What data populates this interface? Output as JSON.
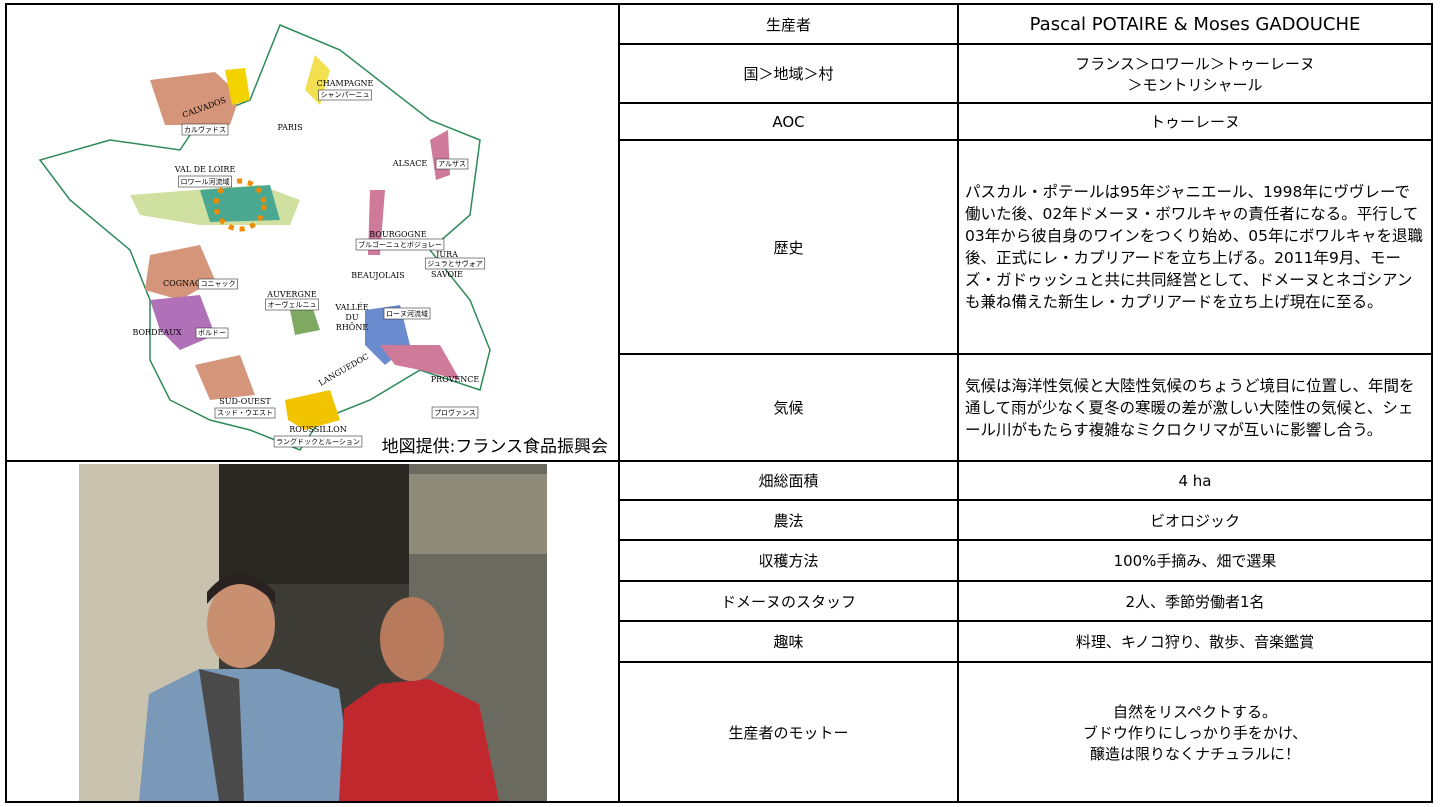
{
  "map": {
    "caption": "地図提供:フランス食品振興会",
    "labels": [
      "CHAMPAGNE",
      "シャンパーニュ",
      "CALVADOS",
      "カルヴァドス",
      "PARIS",
      "ALSACE",
      "アルザス",
      "VAL DE LOIRE",
      "ロワール河流域",
      "BOURGOGNE",
      "ブルゴーニュとボジョレー",
      "JURA",
      "ジュラとサヴォア",
      "SAVOIE",
      "BEAUJOLAIS",
      "COGNAC",
      "コニャック",
      "AUVERGNE",
      "オーヴェルニュ",
      "VALLÉE",
      "DU",
      "RHÔNE",
      "ローヌ河流域",
      "BORDEAUX",
      "ボルドー",
      "LANGUEDOC",
      "PROVENCE",
      "プロヴァンス",
      "SUD-OUEST",
      "スッド・ウエスト",
      "ROUSSILLON",
      "ラングドックとルーション"
    ]
  },
  "table": {
    "rows": [
      [
        "生産者",
        "Pascal POTAIRE & Moses GADOUCHE"
      ],
      [
        "国＞地域＞村",
        [
          "フランス＞ロワール＞トゥーレーヌ",
          "＞モントリシャール"
        ]
      ],
      [
        "AOC",
        "トゥーレーヌ"
      ],
      [
        "歴史",
        "パスカル・ポテールは95年ジャニエール、1998年にヴヴレーで働いた後、02年ドメーヌ・ボワルキャの責任者になる。平行して03年から彼自身のワインをつくり始め、05年にボワルキャを退職後、正式にレ・カプリアードを立ち上げる。2011年9月、モーズ・ガドゥッシュと共に共同経営として、ドメーヌとネゴシアンも兼ね備えた新生レ・カプリアードを立ち上げ現在に至る。"
      ],
      [
        "気候",
        "気候は海洋性気候と大陸性気候のちょうど境目に位置し、年間を通して雨が少なく夏冬の寒暖の差が激しい大陸性の気候と、シェール川がもたらす複雑なミクロクリマが互いに影響し合う。"
      ],
      [
        "畑総面積",
        "4 ha"
      ],
      [
        "農法",
        "ビオロジック"
      ],
      [
        "収穫方法",
        "100%手摘み、畑で選果"
      ],
      [
        "ドメーヌのスタッフ",
        "2人、季節労働者1名"
      ],
      [
        "趣味",
        "料理、キノコ狩り、散歩、音楽鑑賞"
      ],
      [
        "生産者のモットー",
        [
          "自然をリスペクトする。",
          "ブドウ作りにしっかり手をかけ、",
          "醸造は限りなくナチュラルに！"
        ]
      ]
    ]
  }
}
